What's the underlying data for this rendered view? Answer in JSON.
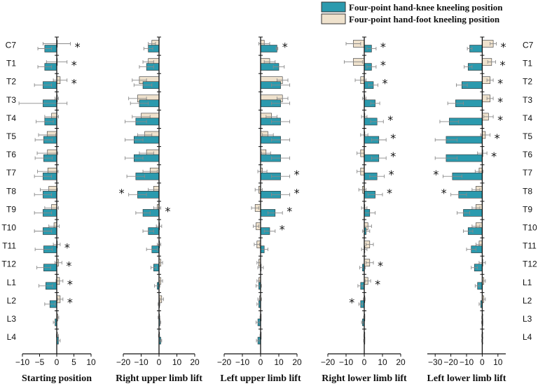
{
  "legend": {
    "items": [
      {
        "label": "Four-point hand-knee kneeling position",
        "color": "#2b9aae"
      },
      {
        "label": "Four-point hand-foot kneeling position",
        "color": "#efe2cd"
      }
    ]
  },
  "colors": {
    "knee": "#2b9aae",
    "foot": "#efe2cd",
    "edge": "#333333",
    "error": "#8a8a8a"
  },
  "chart_data": {
    "type": "bar",
    "orientation": "horizontal",
    "categories": [
      "C7",
      "T1",
      "T2",
      "T3",
      "T4",
      "T5",
      "T6",
      "T7",
      "T8",
      "T9",
      "T10",
      "T11",
      "T12",
      "L1",
      "L2",
      "L3",
      "L4"
    ],
    "series_names": [
      "Four-point hand-knee kneeling position",
      "Four-point hand-foot kneeling position"
    ],
    "significance_symbol": "*",
    "panels": [
      {
        "title": "Starting position",
        "xlim": [
          -10,
          10
        ],
        "xticks": [
          -10,
          -5,
          0,
          5,
          10
        ],
        "knee": [
          -3.5,
          -3.5,
          -4,
          -4,
          -3.5,
          -3.8,
          -3.8,
          -4,
          -4,
          -4,
          -4,
          -3.8,
          -3.8,
          -3.2,
          -2,
          -0.5,
          0.5
        ],
        "knee_err": [
          2,
          2,
          2.5,
          7,
          2.5,
          2.5,
          2.5,
          2.5,
          2.5,
          2.5,
          2.5,
          2.5,
          2,
          2,
          1.5,
          0.5,
          0.5
        ],
        "foot": [
          0,
          0,
          1,
          0,
          -1.5,
          -2.8,
          -2.7,
          -2.6,
          -2.3,
          -1.5,
          -0.8,
          0,
          0.5,
          0.8,
          1,
          0.3,
          0.2
        ],
        "foot_err": [
          4,
          3,
          2,
          0.5,
          2,
          2.5,
          3,
          3,
          2.5,
          2,
          1.5,
          1,
          1,
          1,
          0.8,
          0.3,
          0.3
        ],
        "sig": [
          true,
          true,
          true,
          false,
          false,
          false,
          false,
          false,
          false,
          false,
          false,
          true,
          true,
          true,
          true,
          false,
          false
        ]
      },
      {
        "title": "Right upper limb lift",
        "xlim": [
          -20,
          20
        ],
        "xticks": [
          -20,
          -10,
          0,
          10,
          20
        ],
        "knee": [
          -6,
          -7,
          -9,
          -11,
          -13,
          -14,
          -14,
          -13,
          -12,
          -9,
          -6,
          -4,
          -3,
          -1,
          0,
          0.5,
          1
        ],
        "knee_err": [
          2.5,
          4,
          5,
          5,
          6,
          5,
          5,
          5,
          5,
          4,
          3,
          3,
          1.5,
          1.5,
          0.5,
          0.5,
          0.5
        ],
        "foot": [
          -4,
          -6,
          -11,
          -12,
          -10,
          -8,
          -7,
          -5,
          -3,
          -1,
          0,
          0,
          1,
          1,
          1.5,
          0,
          0
        ],
        "foot_err": [
          2,
          3,
          4,
          5,
          5,
          4,
          4,
          4,
          3,
          2,
          1.5,
          1,
          1,
          1,
          1,
          0.5,
          0.3
        ],
        "sig": [
          false,
          false,
          false,
          false,
          false,
          false,
          false,
          false,
          true,
          true,
          false,
          false,
          false,
          false,
          false,
          false,
          false
        ]
      },
      {
        "title": "Left upper limb lift",
        "xlim": [
          -20,
          20
        ],
        "xticks": [
          -20,
          -10,
          0,
          10,
          20
        ],
        "knee": [
          9,
          10,
          11,
          11,
          11,
          11,
          11,
          11,
          11,
          8,
          5,
          2,
          0,
          -1,
          -1,
          -1.5,
          -1.5
        ],
        "knee_err": [
          0.5,
          3,
          5,
          5,
          5,
          5,
          5,
          5,
          5,
          4,
          3,
          2,
          1.5,
          1.5,
          1,
          1,
          0.8
        ],
        "foot": [
          2,
          5,
          12,
          12,
          6,
          4,
          3,
          1,
          -1,
          -3,
          -2.5,
          -2,
          -1,
          -1,
          -0.5,
          0,
          0
        ],
        "foot_err": [
          3,
          3,
          3,
          3,
          3,
          3,
          2.5,
          2.5,
          2,
          2,
          1.5,
          1.5,
          1,
          1,
          1,
          0.3,
          0.3
        ],
        "sig": [
          true,
          false,
          false,
          false,
          false,
          false,
          false,
          true,
          true,
          true,
          true,
          false,
          false,
          false,
          false,
          false,
          false
        ]
      },
      {
        "title": "Right lower limb lift",
        "xlim": [
          -20,
          20
        ],
        "xticks": [
          -20,
          -10,
          0,
          10,
          20
        ],
        "knee": [
          4,
          4,
          5,
          6,
          7,
          8,
          8,
          7,
          6,
          3,
          1,
          0,
          -1,
          -2,
          -2,
          -1,
          0
        ],
        "knee_err": [
          2.5,
          2.5,
          2.5,
          2.5,
          3.5,
          4,
          4,
          4,
          4,
          3,
          2,
          1.5,
          1.5,
          1.5,
          1,
          0.5,
          0.3
        ],
        "foot": [
          -6,
          -6,
          -2,
          0,
          0,
          0,
          -2,
          -2,
          -1,
          0,
          2,
          3,
          3,
          2,
          0,
          0,
          0
        ],
        "foot_err": [
          4,
          5,
          3,
          1,
          1.5,
          2,
          2,
          2,
          2,
          1.5,
          2,
          2,
          2,
          1.5,
          0.5,
          0.3,
          0.2
        ],
        "sig": [
          true,
          true,
          true,
          false,
          true,
          true,
          true,
          true,
          true,
          false,
          false,
          false,
          true,
          true,
          true,
          false,
          false
        ]
      },
      {
        "title": "Left lower limb lift",
        "xlim": [
          -35,
          15
        ],
        "xticks": [
          -30,
          -20,
          -10,
          0,
          10
        ],
        "knee": [
          -8,
          -9,
          -13,
          -17,
          -21,
          -23,
          -23,
          -19,
          -15,
          -12,
          -9,
          -7,
          -5,
          -3,
          -1,
          0,
          0
        ],
        "knee_err": [
          1.5,
          2.5,
          3.5,
          5,
          6,
          7,
          7,
          6,
          5,
          4,
          3,
          3,
          2,
          1.5,
          1,
          0.5,
          0.3
        ],
        "foot": [
          7,
          6,
          5,
          5,
          4,
          2,
          0,
          -2,
          -4,
          -4,
          -4,
          -2,
          0,
          1,
          1,
          0,
          0
        ],
        "foot_err": [
          2,
          2.5,
          2,
          2,
          3,
          3,
          3,
          2.5,
          2.5,
          2.5,
          2.5,
          2,
          2,
          1,
          1,
          0.3,
          0.3
        ],
        "sig": [
          true,
          true,
          true,
          true,
          true,
          true,
          true,
          true,
          true,
          false,
          false,
          false,
          false,
          false,
          false,
          false,
          false
        ]
      }
    ]
  }
}
